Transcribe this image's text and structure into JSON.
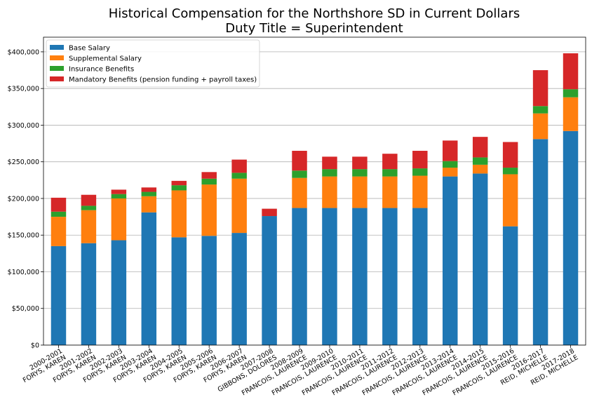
{
  "chart_data": {
    "type": "bar",
    "stacked": true,
    "title": "Historical Compensation for the Northshore SD in Current Dollars",
    "subtitle": "Duty Title = Superintendent",
    "xlabel": "",
    "ylabel": "",
    "ylim": [
      0,
      420000
    ],
    "yticks": [
      0,
      50000,
      100000,
      150000,
      200000,
      250000,
      300000,
      350000,
      400000
    ],
    "ytick_labels": [
      "$0",
      "$50,000",
      "$100,000",
      "$150,000",
      "$200,000",
      "$250,000",
      "$300,000",
      "$350,000",
      "$400,000"
    ],
    "grid": "horizontal",
    "legend_position": "top-left",
    "categories": [
      {
        "year": "2000-2001",
        "name": "FORYS, KAREN"
      },
      {
        "year": "2001-2002",
        "name": "FORYS, KAREN"
      },
      {
        "year": "2002-2003",
        "name": "FORYS, KAREN"
      },
      {
        "year": "2003-2004",
        "name": "FORYS, KAREN"
      },
      {
        "year": "2004-2005",
        "name": "FORYS, KAREN"
      },
      {
        "year": "2005-2006",
        "name": "FORYS, KAREN"
      },
      {
        "year": "2006-2007",
        "name": "FORYS, KAREN"
      },
      {
        "year": "2007-2008",
        "name": "GIBBONS, DOLORES"
      },
      {
        "year": "2008-2009",
        "name": "FRANCOIS, LAURENCE"
      },
      {
        "year": "2009-2010",
        "name": "FRANCOIS, LAURENCE"
      },
      {
        "year": "2010-2011",
        "name": "FRANCOIS, LAURENCE"
      },
      {
        "year": "2011-2012",
        "name": "FRANCOIS, LAURENCE"
      },
      {
        "year": "2012-2013",
        "name": "FRANCOIS, LAURENCE"
      },
      {
        "year": "2013-2014",
        "name": "FRANCOIS, LAURENCE"
      },
      {
        "year": "2014-2015",
        "name": "FRANCOIS, LAURENCE"
      },
      {
        "year": "2015-2016",
        "name": "FRANCOIS, LAURENCE"
      },
      {
        "year": "2016-2017",
        "name": "REID, MICHELLE"
      },
      {
        "year": "2017-2018",
        "name": "REID, MICHELLE"
      }
    ],
    "series": [
      {
        "name": "Base Salary",
        "color": "#1f77b4",
        "values": [
          135000,
          139000,
          143000,
          181000,
          147000,
          149000,
          153000,
          176000,
          187000,
          187000,
          187000,
          187000,
          187000,
          230000,
          234000,
          162000,
          281000,
          292000
        ]
      },
      {
        "name": "Supplemental Salary",
        "color": "#ff7f0e",
        "values": [
          40000,
          45000,
          57000,
          22000,
          64000,
          70000,
          74000,
          0,
          41000,
          43000,
          43000,
          43000,
          44000,
          12000,
          12000,
          71000,
          35000,
          46000
        ]
      },
      {
        "name": "Insurance Benefits",
        "color": "#2ca02c",
        "values": [
          7000,
          6000,
          6000,
          6000,
          7000,
          8000,
          8000,
          0,
          10000,
          10000,
          10000,
          10000,
          10000,
          9000,
          10000,
          9000,
          10000,
          11000
        ]
      },
      {
        "name": "Mandatory Benefits (pension funding + payroll taxes)",
        "color": "#d62728",
        "values": [
          19000,
          15000,
          6000,
          6000,
          6000,
          9000,
          18000,
          10000,
          27000,
          17000,
          17000,
          21000,
          24000,
          28000,
          28000,
          35000,
          49000,
          49000
        ]
      }
    ]
  }
}
